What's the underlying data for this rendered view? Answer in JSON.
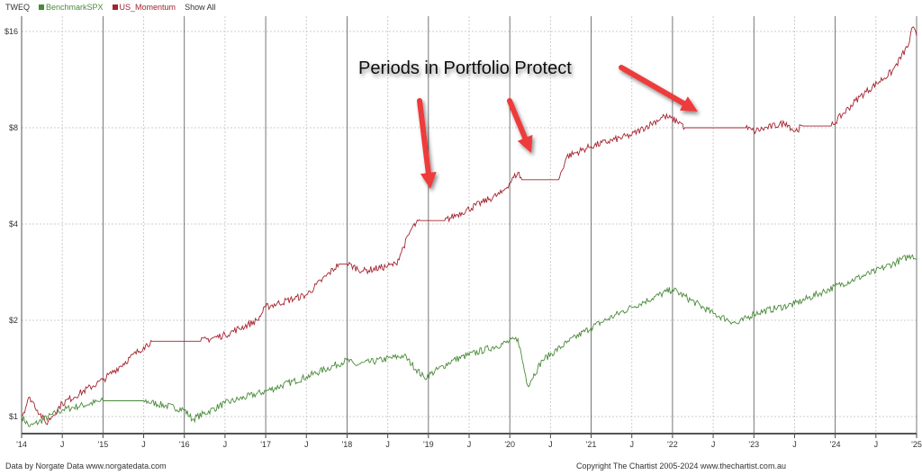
{
  "chart_data": {
    "type": "line",
    "title": "TWEQ",
    "y_scale": "log",
    "ylim": [
      0.88,
      17.5
    ],
    "xlim": [
      2014.0,
      2025.0
    ],
    "y_ticks": [
      "$1",
      "$2",
      "$4",
      "$8",
      "$16"
    ],
    "y_tick_values": [
      1,
      2,
      4,
      8,
      16
    ],
    "x_ticks": [
      "'14",
      "J",
      "'15",
      "J",
      "'16",
      "J",
      "'17",
      "J",
      "'18",
      "J",
      "'19",
      "J",
      "'20",
      "J",
      "'21",
      "J",
      "'22",
      "J",
      "'23",
      "J",
      "'24",
      "J",
      "'25"
    ],
    "grid": true,
    "legend_position": "top-left",
    "series": [
      {
        "name": "BenchmarkSPX",
        "color": "#4a8a3a",
        "points": [
          [
            2014.0,
            1.0
          ],
          [
            2014.1,
            0.93
          ],
          [
            2014.5,
            1.05
          ],
          [
            2015.0,
            1.12
          ],
          [
            2015.5,
            1.12
          ],
          [
            2016.0,
            1.05
          ],
          [
            2016.1,
            0.98
          ],
          [
            2016.5,
            1.1
          ],
          [
            2017.0,
            1.2
          ],
          [
            2017.5,
            1.33
          ],
          [
            2018.0,
            1.5
          ],
          [
            2018.1,
            1.45
          ],
          [
            2018.7,
            1.55
          ],
          [
            2018.95,
            1.32
          ],
          [
            2019.3,
            1.5
          ],
          [
            2020.1,
            1.75
          ],
          [
            2020.22,
            1.25
          ],
          [
            2020.4,
            1.5
          ],
          [
            2020.7,
            1.7
          ],
          [
            2021.0,
            1.9
          ],
          [
            2021.5,
            2.2
          ],
          [
            2022.0,
            2.5
          ],
          [
            2022.5,
            2.1
          ],
          [
            2022.8,
            1.95
          ],
          [
            2023.0,
            2.1
          ],
          [
            2023.5,
            2.25
          ],
          [
            2024.0,
            2.55
          ],
          [
            2024.5,
            2.85
          ],
          [
            2024.95,
            3.2
          ],
          [
            2025.0,
            3.1
          ]
        ]
      },
      {
        "name": "US_Momentum",
        "color": "#a3242f",
        "points": [
          [
            2014.0,
            1.0
          ],
          [
            2014.1,
            1.15
          ],
          [
            2014.3,
            0.95
          ],
          [
            2014.5,
            1.1
          ],
          [
            2015.0,
            1.3
          ],
          [
            2015.5,
            1.65
          ],
          [
            2015.6,
            1.72
          ],
          [
            2016.2,
            1.72
          ],
          [
            2016.5,
            1.8
          ],
          [
            2016.9,
            2.0
          ],
          [
            2017.0,
            2.2
          ],
          [
            2017.5,
            2.4
          ],
          [
            2017.9,
            3.0
          ],
          [
            2018.0,
            3.0
          ],
          [
            2018.2,
            2.85
          ],
          [
            2018.5,
            2.95
          ],
          [
            2018.6,
            3.0
          ],
          [
            2018.8,
            3.9
          ],
          [
            2018.9,
            4.1
          ],
          [
            2019.2,
            4.1
          ],
          [
            2019.9,
            5.0
          ],
          [
            2020.1,
            5.8
          ],
          [
            2020.15,
            5.5
          ],
          [
            2020.6,
            5.5
          ],
          [
            2020.7,
            6.5
          ],
          [
            2021.0,
            7.0
          ],
          [
            2021.5,
            7.6
          ],
          [
            2021.9,
            8.7
          ],
          [
            2022.1,
            8.3
          ],
          [
            2022.15,
            8.0
          ],
          [
            2022.9,
            8.0
          ],
          [
            2023.0,
            7.8
          ],
          [
            2023.4,
            8.3
          ],
          [
            2023.5,
            7.8
          ],
          [
            2023.6,
            8.1
          ],
          [
            2023.95,
            8.1
          ],
          [
            2024.3,
            10.0
          ],
          [
            2024.7,
            12.0
          ],
          [
            2024.9,
            14.5
          ],
          [
            2024.95,
            16.5
          ],
          [
            2025.0,
            15.5
          ]
        ]
      }
    ],
    "annotations": [
      "Periods in Portfolio Protect"
    ]
  },
  "legend": {
    "title": "TWEQ",
    "series1": "BenchmarkSPX",
    "series2": "US_Momentum",
    "show_all": "Show All"
  },
  "footer": {
    "left": "Data by Norgate Data  www.norgatedata.com",
    "right": "Copyright  The Chartist 2005-2024   www.thechartist.com.au"
  },
  "annotation_text": "Periods in Portfolio Protect",
  "colors": {
    "benchmark": "#4a8a3a",
    "momentum": "#a3242f",
    "arrow": "#ee3a3a"
  }
}
